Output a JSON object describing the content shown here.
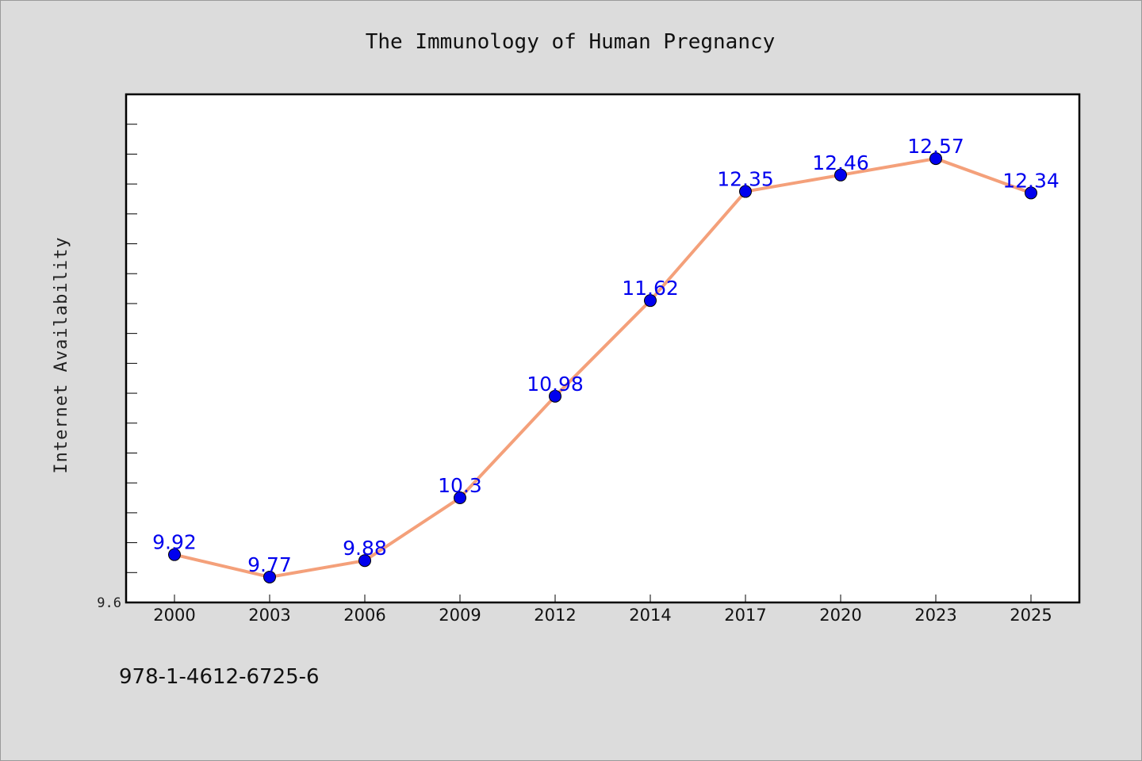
{
  "chart_data": {
    "type": "line",
    "title": "The Immunology of Human Pregnancy",
    "ylabel": "Internet Availability",
    "xlabel": "",
    "categories": [
      "2000",
      "2003",
      "2006",
      "2009",
      "2012",
      "2014",
      "2017",
      "2020",
      "2023",
      "2025"
    ],
    "series": [
      {
        "values": [
          9.92,
          9.77,
          9.88,
          10.3,
          10.98,
          11.62,
          12.35,
          12.46,
          12.57,
          12.34
        ],
        "labels": [
          "9.92",
          "9.77",
          "9.88",
          "10.3",
          "10.98",
          "11.62",
          "12.35",
          "12.46",
          "12.57",
          "12.34"
        ],
        "line_color": "#f4a07a",
        "marker_color": "#0000ee"
      }
    ],
    "ylim": [
      9.6,
      13.0
    ],
    "ytick_labels": [
      "9.6"
    ],
    "minor_tick_step": 0.2,
    "grid": false,
    "legend": "none"
  },
  "footer": {
    "isbn": "978-1-4612-6725-6"
  }
}
